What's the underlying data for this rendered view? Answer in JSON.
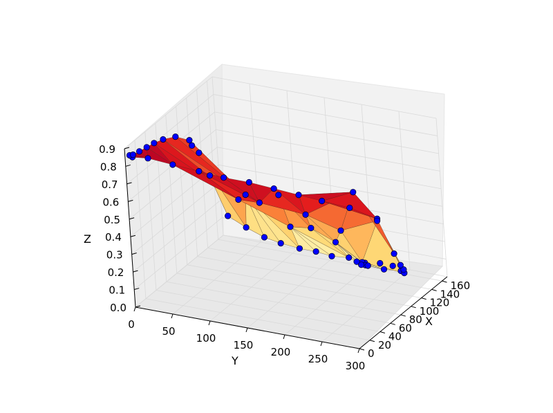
{
  "chart_data": {
    "type": "surface3d",
    "title": "",
    "xlabel": "X",
    "ylabel": "Y",
    "zlabel": "Z",
    "xlim": [
      0,
      170
    ],
    "ylim": [
      0,
      300
    ],
    "zlim": [
      0,
      0.9
    ],
    "xticks": [
      "0",
      "20",
      "40",
      "60",
      "80",
      "100",
      "120",
      "140",
      "160"
    ],
    "yticks": [
      "0",
      "50",
      "100",
      "150",
      "200",
      "250",
      "300"
    ],
    "zticks": [
      "0.0",
      "0.1",
      "0.2",
      "0.3",
      "0.4",
      "0.5",
      "0.6",
      "0.7",
      "0.8",
      "0.9"
    ],
    "grid": true,
    "colormap": "YlOrRd",
    "marker_color": "#0000ff",
    "points": [
      [
        0,
        10,
        0.86
      ],
      [
        0,
        31,
        0.87
      ],
      [
        0,
        64,
        0.86
      ],
      [
        0,
        99,
        0.85
      ],
      [
        0,
        132,
        0.84
      ],
      [
        0,
        166,
        0.84
      ],
      [
        0,
        199,
        0.83
      ],
      [
        0,
        232,
        0.82
      ],
      [
        0,
        263,
        0.81
      ],
      [
        0,
        300,
        0.8
      ],
      [
        6,
        2,
        0.85
      ],
      [
        15,
        0,
        0.83
      ],
      [
        27,
        0,
        0.82
      ],
      [
        41,
        0,
        0.81
      ],
      [
        55,
        0,
        0.8
      ],
      [
        72,
        0,
        0.78
      ],
      [
        95,
        0,
        0.74
      ],
      [
        120,
        0,
        0.66
      ],
      [
        124,
        0,
        0.62
      ],
      [
        136,
        0,
        0.55
      ],
      [
        153,
        0,
        0.38
      ],
      [
        162,
        14,
        0.14
      ],
      [
        163,
        37,
        0.09
      ],
      [
        164,
        60,
        0.05
      ],
      [
        165,
        81,
        0.03
      ],
      [
        165,
        106,
        0.02
      ],
      [
        165,
        128,
        0.02
      ],
      [
        165,
        149,
        0.01
      ],
      [
        165,
        172,
        0.02
      ],
      [
        164,
        194,
        0.01
      ],
      [
        162,
        216,
        0.03
      ],
      [
        158,
        236,
        0.04
      ],
      [
        148,
        254,
        0.05
      ],
      [
        135,
        268,
        0.08
      ],
      [
        118,
        280,
        0.15
      ],
      [
        102,
        288,
        0.22
      ],
      [
        85,
        293,
        0.33
      ],
      [
        49,
        300,
        0.62
      ],
      [
        38,
        150,
        0.62
      ],
      [
        63,
        158,
        0.61
      ],
      [
        70,
        98,
        0.52
      ],
      [
        75,
        184,
        0.49
      ],
      [
        98,
        173,
        0.35
      ],
      [
        97,
        214,
        0.37
      ],
      [
        92,
        268,
        0.48
      ],
      [
        65,
        258,
        0.7
      ],
      [
        112,
        77,
        0.43
      ],
      [
        113,
        134,
        0.29
      ],
      [
        113,
        194,
        0.25
      ],
      [
        124,
        220,
        0.13
      ],
      [
        143,
        210,
        0.06
      ],
      [
        149,
        200,
        0.04
      ],
      [
        153,
        206,
        0.03
      ],
      [
        155,
        226,
        0.02
      ],
      [
        160,
        186,
        0.02
      ]
    ]
  }
}
